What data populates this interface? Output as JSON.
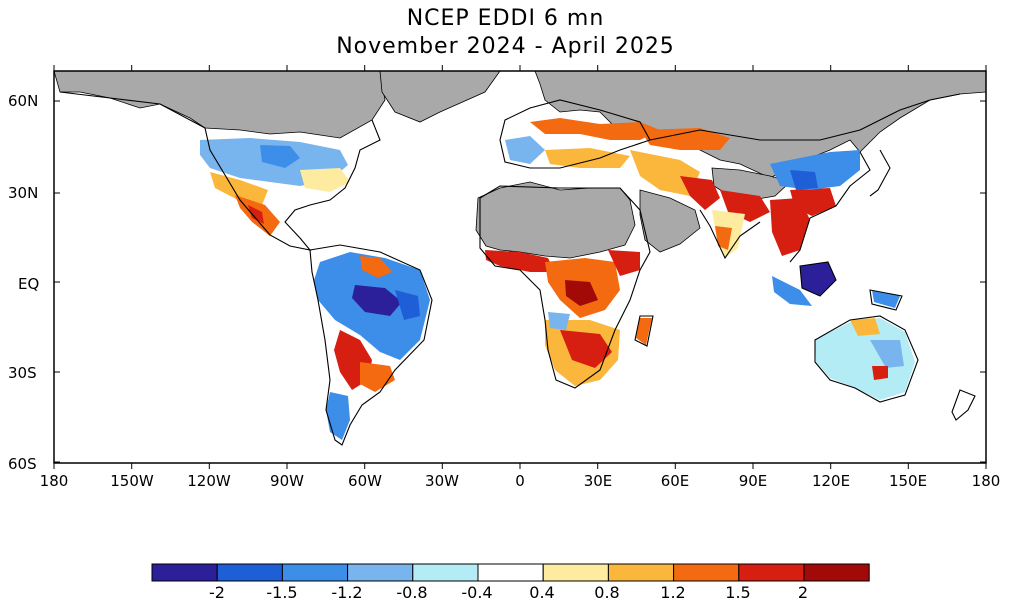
{
  "title": {
    "line1": "NCEP EDDI 6 mn",
    "line2": "November 2024 - April 2025"
  },
  "lat_labels": [
    "60N",
    "30N",
    "EQ",
    "30S",
    "60S"
  ],
  "lon_labels": [
    "180",
    "150W",
    "120W",
    "90W",
    "60W",
    "30W",
    "0",
    "30E",
    "60E",
    "90E",
    "120E",
    "150E",
    "180"
  ],
  "colorbar": {
    "labels": [
      "-2",
      "-1.5",
      "-1.2",
      "-0.8",
      "-0.4",
      "0.4",
      "0.8",
      "1.2",
      "1.5",
      "2"
    ],
    "colors": [
      "#2b1f9a",
      "#1e5fd8",
      "#3d8ee8",
      "#78b4ee",
      "#b4ecf6",
      "#ffffff",
      "#fdeca0",
      "#fbb63c",
      "#f36a10",
      "#d61f10",
      "#a10a06"
    ]
  },
  "colors": {
    "no_data": "#a9a9a9",
    "ocean": "#ffffff"
  }
}
